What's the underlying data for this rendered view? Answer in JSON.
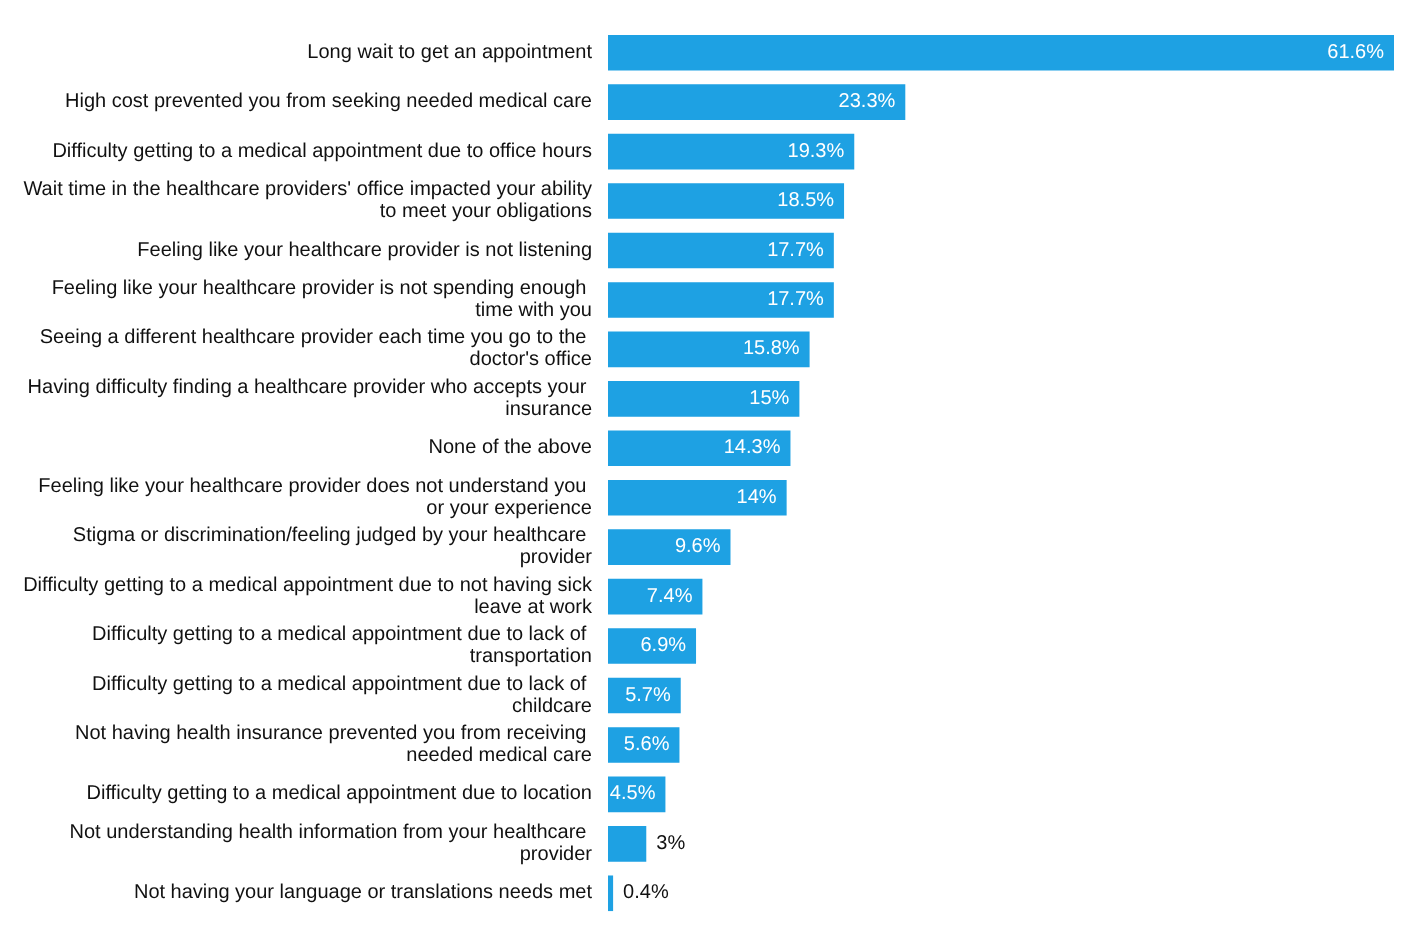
{
  "chart_data": {
    "type": "bar",
    "orientation": "horizontal",
    "categories": [
      "Long wait to get an appointment",
      "High cost prevented you from seeking needed medical care",
      "Difficulty getting to a medical appointment due to office hours",
      "Wait time in the healthcare providers' office impacted your ability to meet your obligations",
      "Feeling like your healthcare provider is not listening",
      "Feeling like your healthcare provider is not spending enough time with you",
      "Seeing a different healthcare provider each time you go to the doctor's office",
      "Having difficulty finding a healthcare provider who accepts your insurance",
      "None of the above",
      "Feeling like your healthcare provider does not understand you or your experience",
      "Stigma or discrimination/feeling judged by your healthcare provider",
      "Difficulty getting to a medical appointment due to not having sick leave at work",
      "Difficulty getting to a medical appointment due to lack of transportation",
      "Difficulty getting to a medical appointment due to lack of childcare",
      "Not having health insurance prevented you from receiving needed medical care",
      "Difficulty getting to a medical appointment due to location",
      "Not understanding health information from your healthcare provider",
      "Not having your language or translations needs met"
    ],
    "values": [
      61.6,
      23.3,
      19.3,
      18.5,
      17.7,
      17.7,
      15.8,
      15,
      14.3,
      14,
      9.6,
      7.4,
      6.9,
      5.7,
      5.6,
      4.5,
      3,
      0.4
    ],
    "value_labels": [
      "61.6%",
      "23.3%",
      "19.3%",
      "18.5%",
      "17.7%",
      "17.7%",
      "15.8%",
      "15%",
      "14.3%",
      "14%",
      "9.6%",
      "7.4%",
      "6.9%",
      "5.7%",
      "5.6%",
      "4.5%",
      "3%",
      "0.4%"
    ],
    "color": "#1ea1e3"
  }
}
